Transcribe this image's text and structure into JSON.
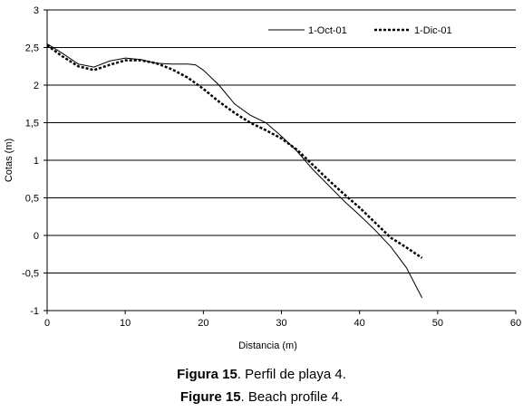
{
  "chart_data": {
    "type": "line",
    "title": "",
    "xlabel": "Distancia (m)",
    "ylabel": "Cotas (m)",
    "xlim": [
      0,
      60
    ],
    "ylim": [
      -1,
      3
    ],
    "x_ticks": [
      0,
      10,
      20,
      30,
      40,
      50,
      60
    ],
    "y_ticks": [
      3,
      2.5,
      2,
      1.5,
      1,
      0.5,
      0,
      -0.5,
      -1
    ],
    "y_tick_labels": [
      "3",
      "2,5",
      "2",
      "1,5",
      "1",
      "0,5",
      "0",
      "-0,5",
      "-1"
    ],
    "grid": "horizontal",
    "legend_position": "top-right",
    "series": [
      {
        "name": "1-Oct-01",
        "style": "solid",
        "color": "#000000",
        "x": [
          0,
          2,
          4,
          6,
          8,
          10,
          12,
          14,
          16,
          18,
          19,
          20,
          22,
          24,
          26,
          28,
          30,
          32,
          34,
          36,
          38,
          40,
          42,
          44,
          46,
          48
        ],
        "y": [
          2.55,
          2.42,
          2.28,
          2.24,
          2.32,
          2.36,
          2.34,
          2.29,
          2.28,
          2.28,
          2.27,
          2.2,
          2.0,
          1.75,
          1.6,
          1.5,
          1.32,
          1.12,
          0.88,
          0.67,
          0.46,
          0.27,
          0.07,
          -0.15,
          -0.43,
          -0.83
        ]
      },
      {
        "name": "1-Dic-01",
        "style": "dotted",
        "color": "#000000",
        "x": [
          0,
          2,
          4,
          6,
          8,
          10,
          12,
          14,
          16,
          18,
          20,
          22,
          24,
          26,
          28,
          30,
          32,
          34,
          36,
          38,
          40,
          42,
          44,
          46,
          48
        ],
        "y": [
          2.53,
          2.38,
          2.25,
          2.2,
          2.27,
          2.33,
          2.33,
          2.29,
          2.21,
          2.1,
          1.95,
          1.78,
          1.63,
          1.5,
          1.4,
          1.29,
          1.14,
          0.94,
          0.74,
          0.55,
          0.37,
          0.17,
          -0.03,
          -0.16,
          -0.3
        ]
      }
    ]
  },
  "caption": {
    "es_label": "Figura 15",
    "es_text": ". Perfil de playa 4.",
    "en_label": "Figure 15",
    "en_text": ". Beach profile 4."
  }
}
